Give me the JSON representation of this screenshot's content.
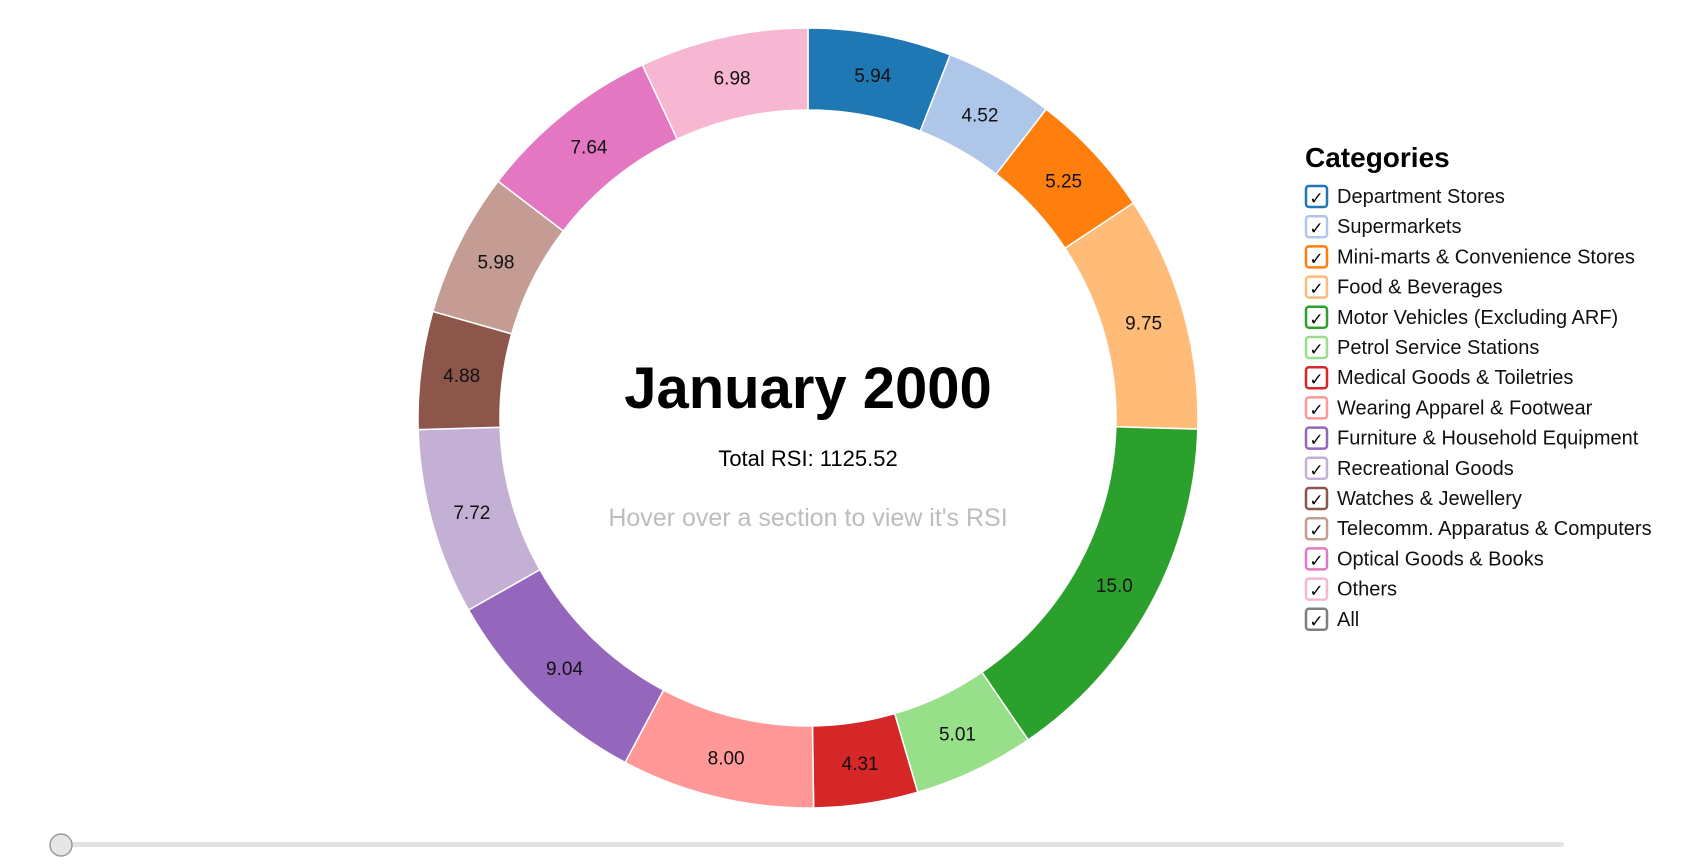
{
  "chart_data": {
    "type": "pie",
    "title": "January 2000",
    "subtitle": "Total RSI: 1125.52",
    "hint": "Hover over a section to view it's RSI",
    "slices": [
      {
        "label": "Department Stores",
        "value": 5.94,
        "display": "5.94",
        "color": "#1f77b4"
      },
      {
        "label": "Supermarkets",
        "value": 4.52,
        "display": "4.52",
        "color": "#aec7e8"
      },
      {
        "label": "Mini-marts & Convenience Stores",
        "value": 5.25,
        "display": "5.25",
        "color": "#ff7f0e"
      },
      {
        "label": "Food & Beverages",
        "value": 9.75,
        "display": "9.75",
        "color": "#ffbb78"
      },
      {
        "label": "Motor Vehicles (Excluding ARF)",
        "value": 15.0,
        "display": "15.0",
        "color": "#2ca02c"
      },
      {
        "label": "Petrol Service Stations",
        "value": 5.01,
        "display": "5.01",
        "color": "#98df8a"
      },
      {
        "label": "Medical Goods & Toiletries",
        "value": 4.31,
        "display": "4.31",
        "color": "#d62728"
      },
      {
        "label": "Wearing Apparel & Footwear",
        "value": 8.0,
        "display": "8.00",
        "color": "#ff9896"
      },
      {
        "label": "Furniture & Household Equipment",
        "value": 9.04,
        "display": "9.04",
        "color": "#9467bd"
      },
      {
        "label": "Recreational Goods",
        "value": 7.72,
        "display": "7.72",
        "color": "#c5b0d5"
      },
      {
        "label": "Watches & Jewellery",
        "value": 4.88,
        "display": "4.88",
        "color": "#8c564b"
      },
      {
        "label": "Telecomm. Apparatus & Computers",
        "value": 5.98,
        "display": "5.98",
        "color": "#c49c94"
      },
      {
        "label": "Optical Goods & Books",
        "value": 7.64,
        "display": "7.64",
        "color": "#e377c2"
      },
      {
        "label": "Others",
        "value": 6.98,
        "display": "6.98",
        "color": "#f7b6d2"
      }
    ],
    "legend": {
      "title": "Categories",
      "placement": "right",
      "all_label": "All",
      "all_color": "#7f7f7f",
      "check_glyph": "✓"
    },
    "slider": {
      "position": 0
    }
  }
}
